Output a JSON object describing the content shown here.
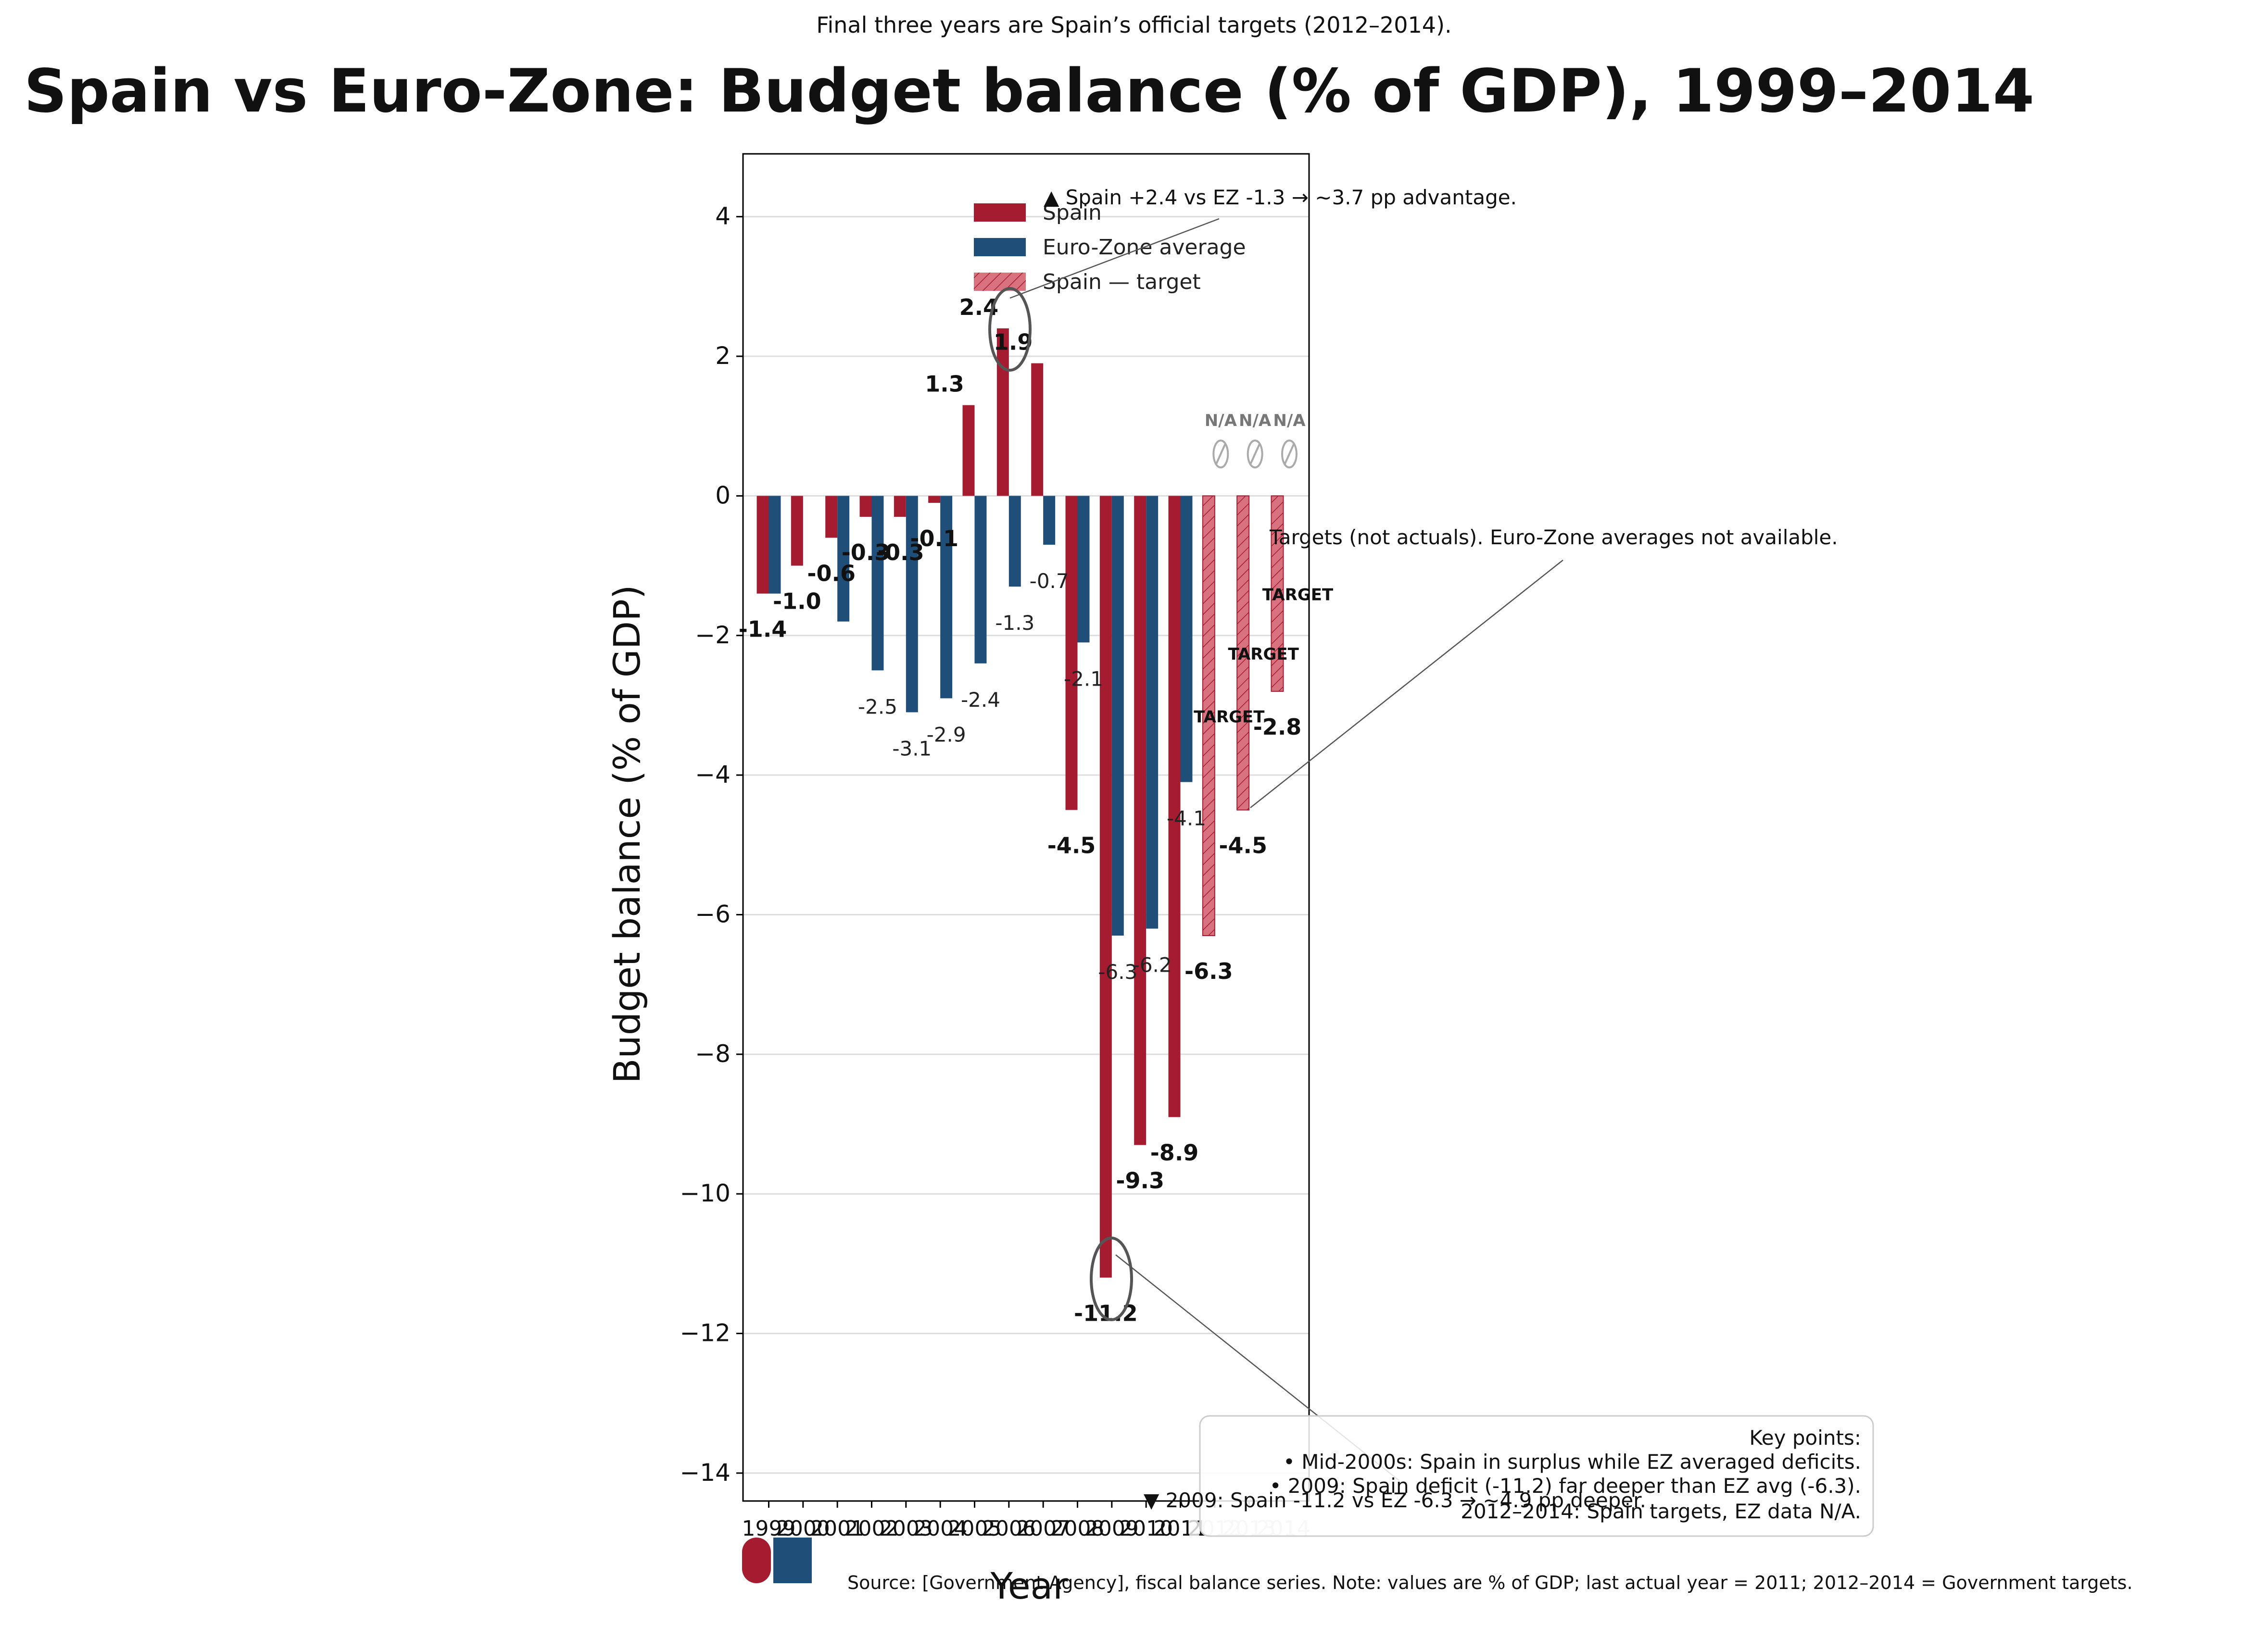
{
  "chart_data": {
    "type": "bar",
    "title": "Spain vs Euro-Zone: Budget balance (% of GDP), 1999–2014",
    "subtitle": "Final three years are Spain’s official targets (2012–2014).",
    "xlabel": "Year",
    "ylabel": "Budget balance (% of GDP)",
    "ylim": [
      -14.4,
      4.9
    ],
    "yticks": [
      4,
      2,
      0,
      -2,
      -4,
      -6,
      -8,
      -10,
      -12,
      -14
    ],
    "ytick_labels": [
      "4",
      "2",
      "0",
      "−2",
      "−4",
      "−6",
      "−8",
      "−10",
      "−12",
      "−14"
    ],
    "grid": "horizontal",
    "categories": [
      "1999",
      "2000",
      "2001",
      "2002",
      "2003",
      "2004",
      "2005",
      "2006",
      "2007",
      "2008",
      "2009",
      "2010",
      "2011",
      "2012",
      "2013",
      "2014"
    ],
    "series": [
      {
        "name": "Spain",
        "color": "#a51c30",
        "values": [
          -1.4,
          -1.0,
          -0.6,
          -0.3,
          -0.3,
          -0.1,
          1.3,
          2.4,
          1.9,
          -4.5,
          -11.2,
          -9.3,
          -8.9,
          -6.3,
          -4.5,
          -2.8
        ],
        "labels": [
          "-1.4",
          "-1.0",
          "-0.6",
          "-0.3",
          "-0.3",
          "-0.1",
          "1.3",
          "2.4",
          "1.9",
          "-4.5",
          "-11.2",
          "-9.3",
          "-8.9",
          "-6.3",
          "-4.5",
          "-2.8"
        ],
        "target_from_index": 13
      },
      {
        "name": "Euro-Zone average",
        "color": "#1f4e79",
        "values": [
          -1.4,
          null,
          -1.8,
          -2.5,
          -3.1,
          -2.9,
          -2.4,
          -1.3,
          -0.7,
          -2.1,
          -6.3,
          -6.2,
          -4.1,
          null,
          null,
          null
        ],
        "labels": [
          "",
          "",
          "",
          "-2.5",
          "-3.1",
          "-2.9",
          "-2.4",
          "-1.3",
          "-0.7",
          "-2.1",
          "-6.3",
          "-6.2",
          "-4.1",
          "N/A",
          "N/A",
          "N/A"
        ]
      }
    ],
    "legend": {
      "placement": "top-center",
      "entries": [
        "Spain",
        "Euro-Zone average",
        "Spain — target"
      ]
    },
    "target_label": "TARGET",
    "annotations": {
      "peak": "▲ Spain +2.4 vs EZ -1.3 → ~3.7 pp advantage.",
      "targets": "Targets (not actuals). Euro-Zone averages not available.",
      "trough": "▼ 2009: Spain -11.2 vs EZ -6.3 → ~4.9 pp deeper."
    },
    "key_points": {
      "title": "Key points:",
      "items": [
        "• Mid-2000s: Spain in surplus while EZ averaged deficits.",
        "• 2009: Spain deficit (-11.2) far deeper than EZ avg (-6.3).",
        "2012–2014: Spain targets, EZ data N/A."
      ]
    },
    "source": "Source: [Government Agency], fiscal balance series. Note: values are % of GDP; last actual year = 2011; 2012–2014 = Government targets."
  }
}
